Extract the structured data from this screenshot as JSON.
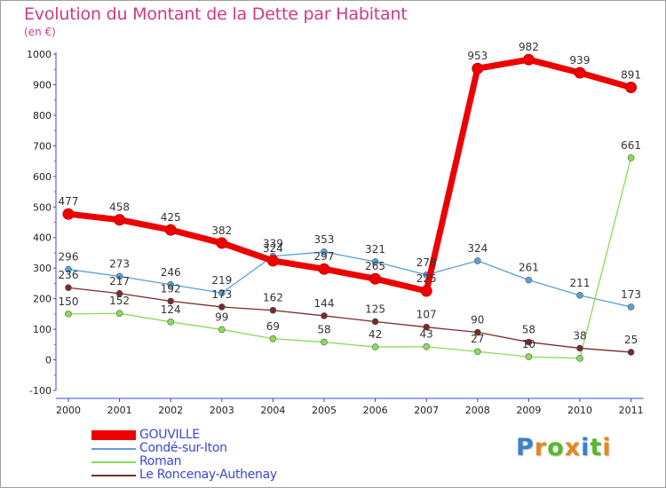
{
  "header": {
    "title": "Evolution du Montant de la Dette par Habitant",
    "unit": "(en €)"
  },
  "colors": {
    "title": "#cc3a87",
    "axis": "#3a48d6",
    "gouville": "#ee0000",
    "conde": "#5aa0d8",
    "roman": "#88dd55",
    "roncenay": "#7a2a2a"
  },
  "logo": {
    "text": "Proxiti",
    "letters": [
      "P",
      "r",
      "o",
      "x",
      "i",
      "t",
      "i"
    ]
  },
  "chart_data": {
    "type": "line",
    "title": "Evolution du Montant de la Dette par Habitant",
    "ylabel": "(en €)",
    "xlabel": "",
    "ylim": [
      -100,
      1000
    ],
    "yticks": [
      -100,
      0,
      100,
      200,
      300,
      400,
      500,
      600,
      700,
      800,
      900,
      1000
    ],
    "grid": false,
    "legend": "bottom-left",
    "categories": [
      "2000",
      "2001",
      "2002",
      "2003",
      "2004",
      "2005",
      "2006",
      "2007",
      "2008",
      "2009",
      "2010",
      "2011"
    ],
    "series": [
      {
        "name": "GOUVILLE",
        "color": "#ee0000",
        "values": [
          477,
          458,
          425,
          382,
          324,
          297,
          265,
          225,
          953,
          982,
          939,
          891
        ],
        "labels": [
          "477",
          "458",
          "425",
          "382",
          "324",
          "297",
          "265",
          "225",
          "953",
          "982",
          "939",
          "891"
        ]
      },
      {
        "name": "Condé-sur-Iton",
        "color": "#5aa0d8",
        "values": [
          296,
          273,
          246,
          219,
          339,
          353,
          321,
          278,
          324,
          261,
          211,
          173
        ],
        "labels": [
          "296",
          "273",
          "246",
          "219",
          "339",
          "353",
          "321",
          "278",
          "324",
          "261",
          "211",
          "173"
        ]
      },
      {
        "name": "Roman",
        "color": "#88dd55",
        "values": [
          150,
          152,
          124,
          99,
          69,
          58,
          42,
          43,
          27,
          10,
          5,
          661
        ],
        "labels": [
          "150",
          "152",
          "124",
          "99",
          "69",
          "58",
          "42",
          "43",
          "27",
          "10",
          "",
          "661"
        ]
      },
      {
        "name": "Le Roncenay-Authenay",
        "color": "#7a2a2a",
        "values": [
          236,
          217,
          192,
          173,
          162,
          144,
          125,
          107,
          90,
          58,
          38,
          25
        ],
        "labels": [
          "236",
          "217",
          "192",
          "173",
          "162",
          "144",
          "125",
          "107",
          "90",
          "58",
          "38",
          "25"
        ]
      }
    ]
  }
}
